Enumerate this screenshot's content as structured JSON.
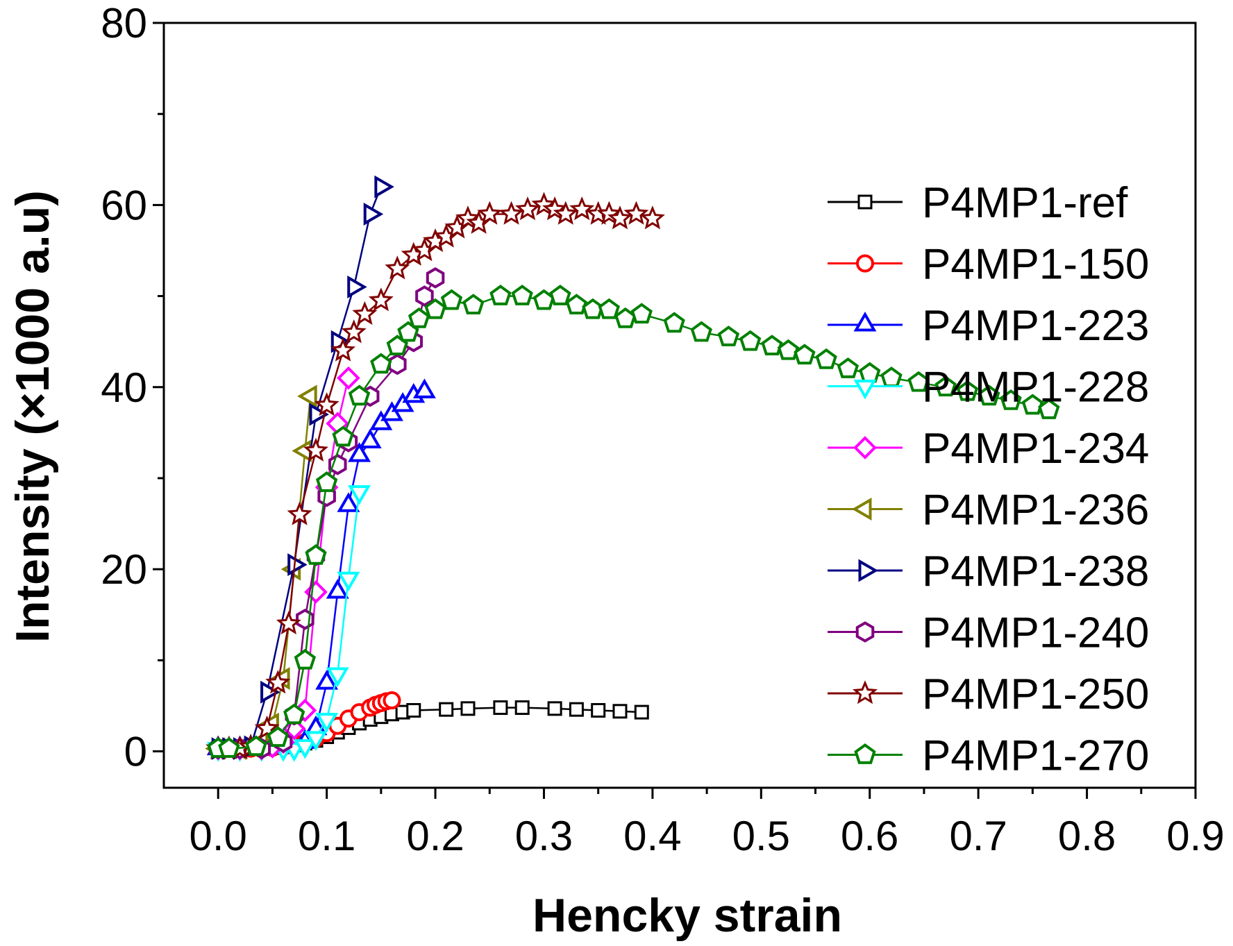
{
  "chart_data": {
    "type": "line",
    "title": "",
    "xlabel": "Hencky strain",
    "ylabel": "Intensity (×1000 a.u)",
    "xlim": [
      -0.05,
      0.9
    ],
    "ylim": [
      -4,
      80
    ],
    "xticks": [
      "0.0",
      "0.1",
      "0.2",
      "0.3",
      "0.4",
      "0.5",
      "0.6",
      "0.7",
      "0.8",
      "0.9"
    ],
    "yticks": [
      "0",
      "20",
      "40",
      "60",
      "80"
    ],
    "grid": false,
    "legend_position": "right",
    "series": [
      {
        "name": "P4MP1-ref",
        "color": "#000000",
        "marker": "square",
        "x": [
          0.0,
          0.01,
          0.02,
          0.03,
          0.04,
          0.05,
          0.06,
          0.07,
          0.08,
          0.09,
          0.1,
          0.11,
          0.12,
          0.13,
          0.14,
          0.15,
          0.16,
          0.17,
          0.18,
          0.21,
          0.23,
          0.26,
          0.28,
          0.31,
          0.33,
          0.35,
          0.37,
          0.39
        ],
        "y": [
          0.3,
          0.3,
          0.3,
          0.3,
          0.3,
          0.4,
          0.5,
          0.7,
          0.9,
          1.2,
          1.6,
          2.1,
          2.6,
          3.1,
          3.5,
          3.8,
          4.1,
          4.3,
          4.5,
          4.6,
          4.7,
          4.8,
          4.8,
          4.7,
          4.6,
          4.5,
          4.4,
          4.3
        ]
      },
      {
        "name": "P4MP1-150",
        "color": "#ff0000",
        "marker": "circle",
        "x": [
          0.0,
          0.01,
          0.02,
          0.03,
          0.04,
          0.05,
          0.06,
          0.07,
          0.08,
          0.09,
          0.1,
          0.11,
          0.12,
          0.13,
          0.14,
          0.145,
          0.15,
          0.155,
          0.16
        ],
        "y": [
          0.3,
          0.3,
          0.3,
          0.3,
          0.3,
          0.4,
          0.5,
          0.7,
          1.0,
          1.4,
          2.0,
          2.8,
          3.6,
          4.3,
          4.8,
          5.1,
          5.3,
          5.5,
          5.6
        ]
      },
      {
        "name": "P4MP1-223",
        "color": "#0000ff",
        "marker": "triangle-up",
        "x": [
          0.0,
          0.02,
          0.04,
          0.06,
          0.08,
          0.09,
          0.1,
          0.11,
          0.12,
          0.13,
          0.14,
          0.15,
          0.16,
          0.17,
          0.18,
          0.19
        ],
        "y": [
          0.3,
          0.3,
          0.4,
          0.5,
          1.0,
          2.5,
          7.5,
          17.5,
          27.0,
          32.5,
          34.0,
          36.0,
          37.0,
          38.0,
          39.0,
          39.5
        ]
      },
      {
        "name": "P4MP1-228",
        "color": "#00ffff",
        "marker": "triangle-down",
        "x": [
          0.0,
          0.02,
          0.04,
          0.06,
          0.07,
          0.08,
          0.09,
          0.1,
          0.11,
          0.12,
          0.13
        ],
        "y": [
          0.3,
          0.3,
          0.3,
          0.3,
          0.3,
          0.6,
          1.5,
          3.5,
          8.5,
          19.0,
          28.5
        ]
      },
      {
        "name": "P4MP1-234",
        "color": "#ff00ff",
        "marker": "diamond",
        "x": [
          0.0,
          0.02,
          0.04,
          0.05,
          0.06,
          0.07,
          0.08,
          0.09,
          0.1,
          0.11,
          0.12
        ],
        "y": [
          0.3,
          0.3,
          0.3,
          0.5,
          1.0,
          2.5,
          4.5,
          17.5,
          29.0,
          36.0,
          41.0
        ]
      },
      {
        "name": "P4MP1-236",
        "color": "#808000",
        "marker": "triangle-left",
        "x": [
          0.0,
          0.02,
          0.04,
          0.05,
          0.06,
          0.07,
          0.08,
          0.085
        ],
        "y": [
          0.3,
          0.3,
          1.0,
          3.0,
          8.0,
          20.0,
          33.0,
          39.0
        ]
      },
      {
        "name": "P4MP1-238",
        "color": "#000080",
        "marker": "triangle-right",
        "x": [
          0.0,
          0.01,
          0.02,
          0.03,
          0.045,
          0.07,
          0.09,
          0.11,
          0.125,
          0.14,
          0.15
        ],
        "y": [
          0.3,
          0.3,
          0.3,
          0.5,
          6.5,
          20.5,
          37.0,
          45.0,
          51.0,
          59.0,
          62.0
        ]
      },
      {
        "name": "P4MP1-240",
        "color": "#800080",
        "marker": "hexagon",
        "x": [
          0.0,
          0.02,
          0.04,
          0.06,
          0.07,
          0.08,
          0.09,
          0.1,
          0.11,
          0.12,
          0.14,
          0.165,
          0.18,
          0.19,
          0.2
        ],
        "y": [
          0.3,
          0.3,
          0.3,
          1.0,
          4.0,
          14.5,
          21.5,
          28.0,
          31.5,
          34.0,
          39.0,
          42.5,
          45.0,
          50.0,
          52.0
        ]
      },
      {
        "name": "P4MP1-250",
        "color": "#800000",
        "marker": "star",
        "x": [
          0.0,
          0.01,
          0.02,
          0.03,
          0.045,
          0.055,
          0.065,
          0.075,
          0.09,
          0.1,
          0.115,
          0.125,
          0.135,
          0.15,
          0.165,
          0.18,
          0.19,
          0.2,
          0.21,
          0.22,
          0.23,
          0.24,
          0.25,
          0.27,
          0.285,
          0.3,
          0.31,
          0.32,
          0.335,
          0.35,
          0.36,
          0.37,
          0.385,
          0.4
        ],
        "y": [
          0.3,
          0.3,
          0.3,
          0.5,
          2.5,
          7.5,
          14.0,
          26.0,
          33.0,
          38.0,
          44.0,
          46.0,
          48.0,
          49.5,
          53.0,
          54.5,
          55.0,
          56.0,
          56.5,
          57.5,
          58.5,
          58.0,
          59.0,
          59.0,
          59.5,
          60.0,
          59.5,
          59.0,
          59.5,
          59.0,
          59.0,
          58.5,
          59.0,
          58.5
        ]
      },
      {
        "name": "P4MP1-270",
        "color": "#008000",
        "marker": "pentagon",
        "x": [
          0.0,
          0.01,
          0.035,
          0.055,
          0.07,
          0.08,
          0.09,
          0.1,
          0.115,
          0.13,
          0.15,
          0.165,
          0.175,
          0.185,
          0.2,
          0.215,
          0.235,
          0.26,
          0.28,
          0.3,
          0.315,
          0.33,
          0.345,
          0.36,
          0.375,
          0.39,
          0.42,
          0.445,
          0.47,
          0.49,
          0.51,
          0.525,
          0.54,
          0.56,
          0.58,
          0.6,
          0.62,
          0.645,
          0.67,
          0.69,
          0.71,
          0.73,
          0.75,
          0.765
        ],
        "y": [
          0.3,
          0.3,
          0.5,
          1.5,
          4.0,
          10.0,
          21.5,
          29.5,
          34.5,
          39.0,
          42.5,
          44.5,
          46.0,
          47.5,
          48.5,
          49.5,
          49.0,
          50.0,
          50.0,
          49.5,
          50.0,
          49.0,
          48.5,
          48.5,
          47.5,
          48.0,
          47.0,
          46.0,
          45.5,
          45.0,
          44.5,
          44.0,
          43.5,
          43.0,
          42.0,
          41.5,
          41.0,
          40.5,
          40.0,
          39.5,
          39.0,
          38.5,
          38.0,
          37.5
        ]
      }
    ]
  }
}
